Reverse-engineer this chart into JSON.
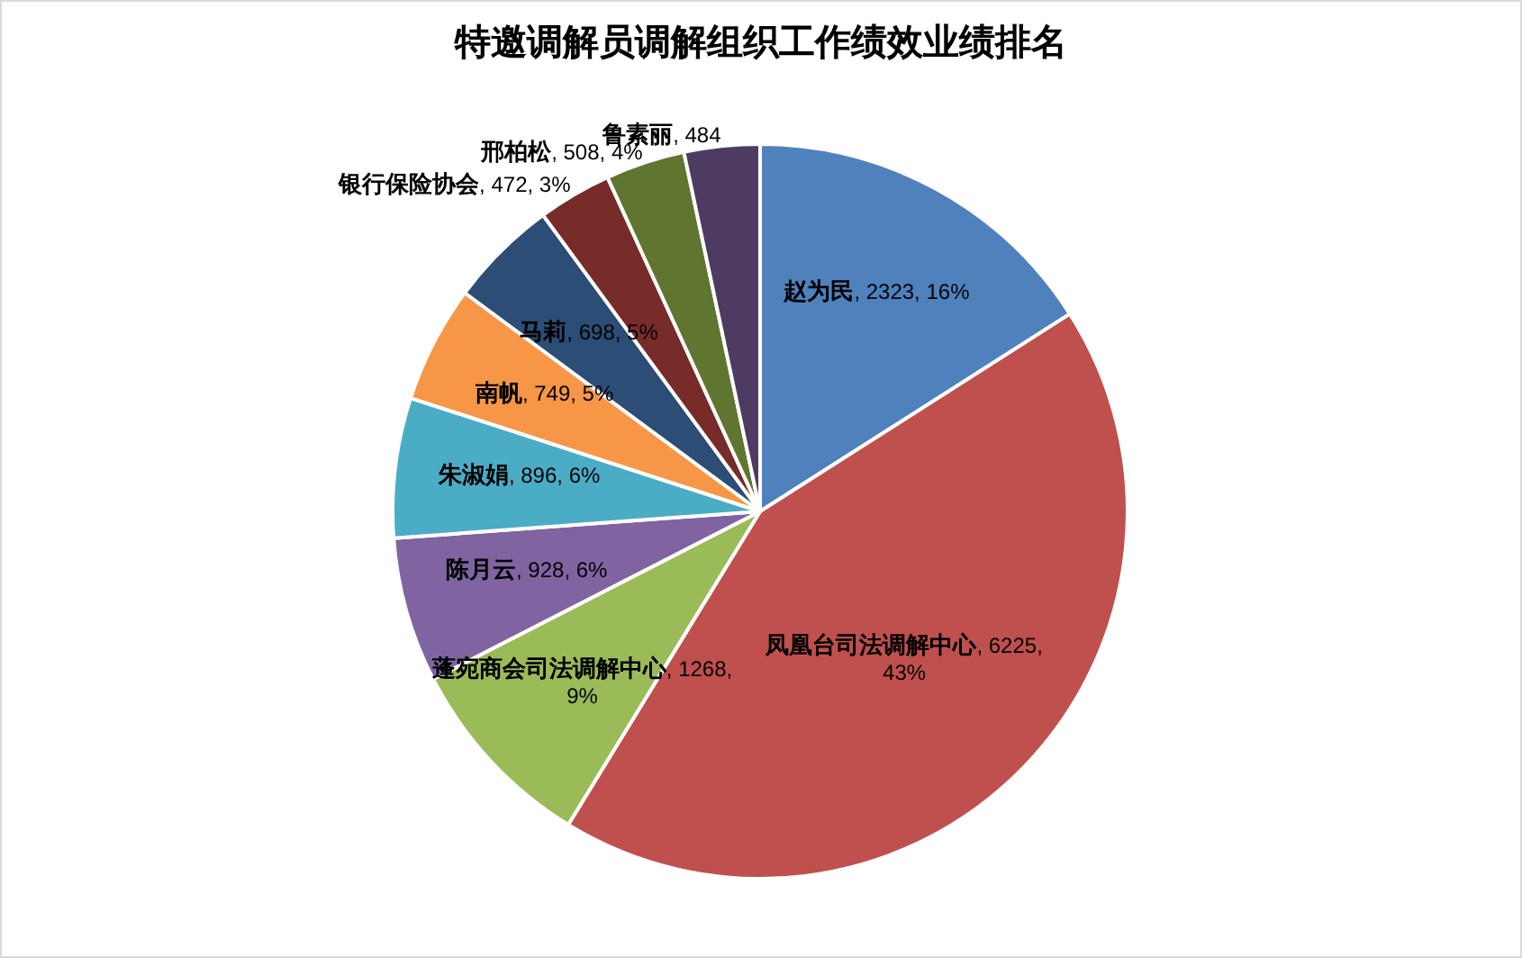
{
  "chart_data": {
    "type": "pie",
    "title": "特邀调解员调解组织工作绩效业绩排名",
    "categories": [
      "赵为民",
      "凤凰台司法调解中心",
      "蓬宛商会司法调解中心",
      "陈月云",
      "朱淑娟",
      "南帆",
      "马莉",
      "银行保险协会",
      "邢柏松",
      "鲁素丽"
    ],
    "values": [
      2323,
      6225,
      1268,
      928,
      896,
      749,
      698,
      472,
      508,
      484
    ],
    "colors": [
      "#4f81bd",
      "#c0504d",
      "#9bbb59",
      "#8064a2",
      "#4bacc6",
      "#f79646",
      "#2c4d75",
      "#772c2a",
      "#5f7530",
      "#4d3b62"
    ],
    "value_labels": [
      ", 2323, 16%",
      ", 6225, 43%",
      ", 1268, 9%",
      ", 928, 6%",
      ", 896, 6%",
      ", 749, 5%",
      ", 698, 5%",
      ", 472, 3%",
      ", 508, 4%",
      ", 484"
    ]
  }
}
